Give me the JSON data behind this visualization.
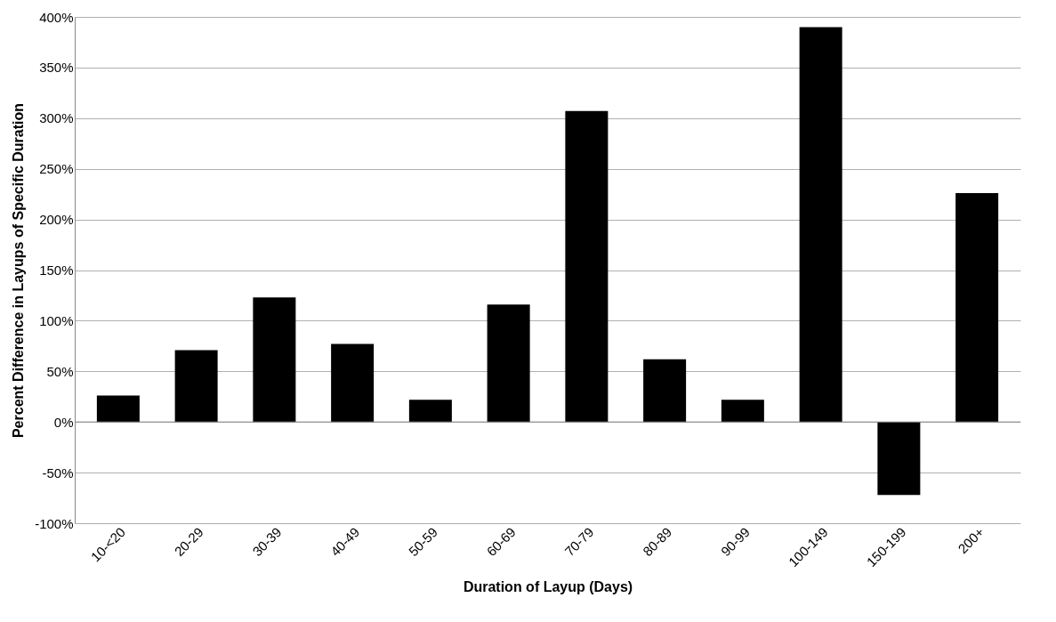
{
  "chart_data": {
    "type": "bar",
    "xlabel": "Duration of Layup (Days)",
    "ylabel": "Percent Difference in Layups of Specific Duration",
    "categories": [
      "10-<20",
      "20-29",
      "30-39",
      "40-49",
      "50-59",
      "60-69",
      "70-79",
      "80-89",
      "90-99",
      "100-149",
      "150-199",
      "200+"
    ],
    "values": [
      26,
      71,
      123,
      77,
      22,
      116,
      307,
      62,
      22,
      390,
      -72,
      226
    ],
    "color": "#000000",
    "ylim": [
      -100,
      400
    ],
    "yticks": [
      {
        "value": -100,
        "label": "-100%"
      },
      {
        "value": -50,
        "label": "-50%"
      },
      {
        "value": 0,
        "label": "0%"
      },
      {
        "value": 50,
        "label": "50%"
      },
      {
        "value": 100,
        "label": "100%"
      },
      {
        "value": 150,
        "label": "150%"
      },
      {
        "value": 200,
        "label": "200%"
      },
      {
        "value": 250,
        "label": "250%"
      },
      {
        "value": 300,
        "label": "300%"
      },
      {
        "value": 350,
        "label": "350%"
      },
      {
        "value": 400,
        "label": "400%"
      }
    ],
    "grid": "y"
  }
}
